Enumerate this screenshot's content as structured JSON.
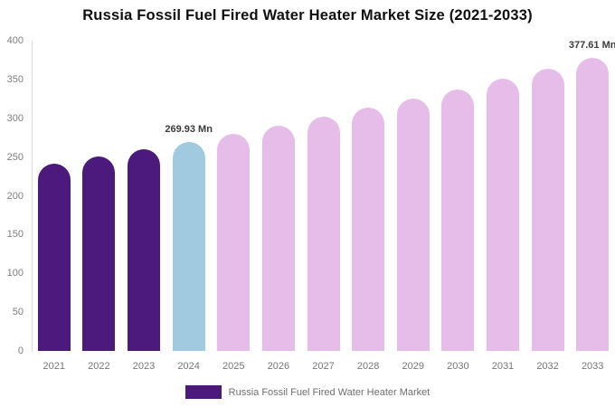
{
  "chart_data": {
    "type": "bar",
    "title": "Russia Fossil Fuel Fired Water Heater Market Size (2021-2033)",
    "categories": [
      "2021",
      "2022",
      "2023",
      "2024",
      "2025",
      "2026",
      "2027",
      "2028",
      "2029",
      "2030",
      "2031",
      "2032",
      "2033"
    ],
    "values": [
      241.3,
      250.5,
      260.0,
      269.93,
      280.2,
      290.9,
      301.9,
      313.4,
      325.3,
      337.6,
      350.5,
      363.8,
      377.61
    ],
    "unit": "Mn",
    "bar_colors": [
      "#4b1a7c",
      "#4b1a7c",
      "#4b1a7c",
      "#a1c9df",
      "#e6bde9",
      "#e6bde9",
      "#e6bde9",
      "#e6bde9",
      "#e6bde9",
      "#e6bde9",
      "#e6bde9",
      "#e6bde9",
      "#e6bde9"
    ],
    "data_labels": [
      {
        "index": 3,
        "text": "269.93 Mn"
      },
      {
        "index": 12,
        "text": "377.61 Mn"
      }
    ],
    "xlabel": "",
    "ylabel": "",
    "ylim": [
      0,
      400
    ],
    "yticks": [
      0,
      50,
      100,
      150,
      200,
      250,
      300,
      350,
      400
    ],
    "grid": "none",
    "legend": {
      "position": "bottom",
      "swatch_color": "#4b1a7c",
      "label": "Russia Fossil Fuel Fired Water Heater Market"
    }
  }
}
